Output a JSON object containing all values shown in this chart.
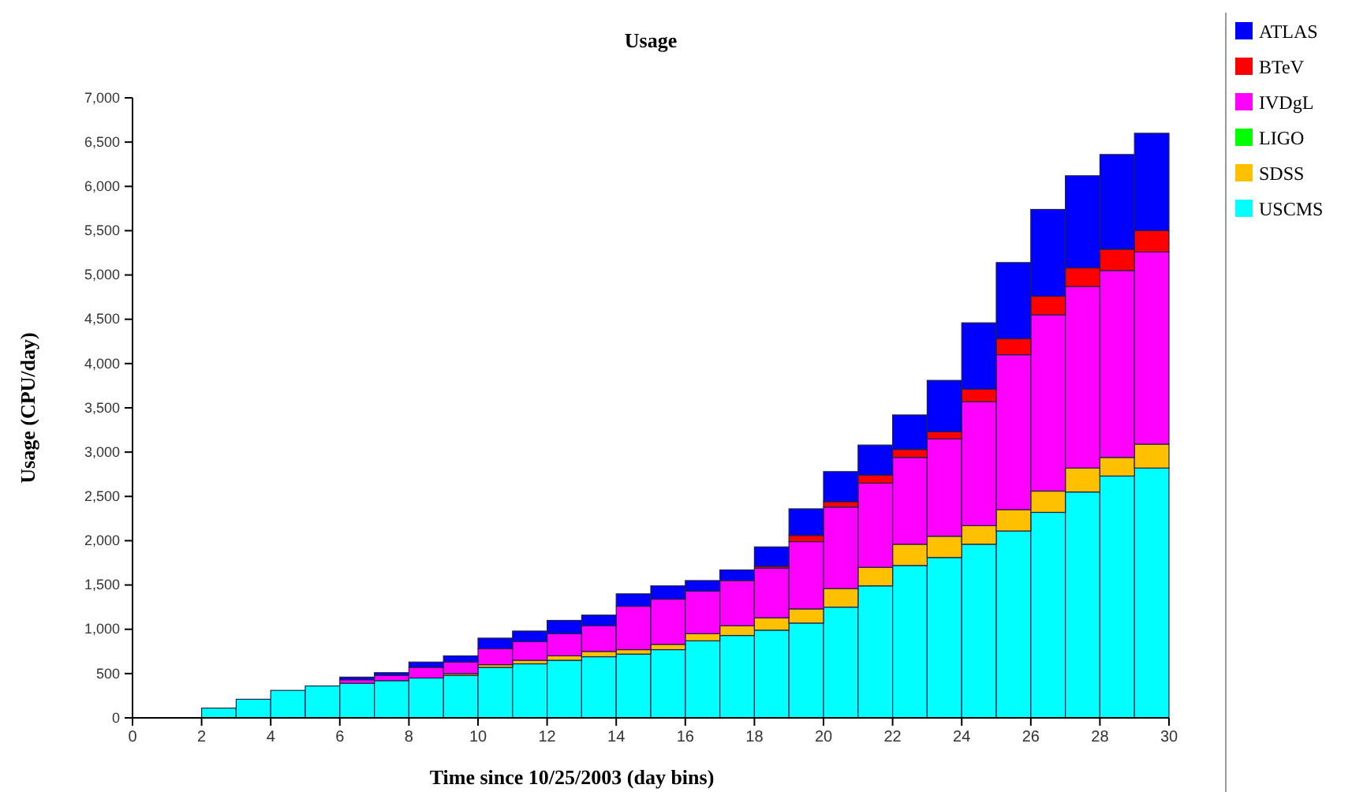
{
  "chart_data": {
    "type": "bar",
    "title": "Usage",
    "xlabel": "Time since 10/25/2003 (day bins)",
    "ylabel": "Usage (CPU/day)",
    "stacked": true,
    "legend": "right",
    "grid": false,
    "x": [
      2.5,
      3.5,
      4.5,
      5.5,
      6.5,
      7.5,
      8.5,
      9.5,
      10.5,
      11.5,
      12.5,
      13.5,
      14.5,
      15.5,
      16.5,
      17.5,
      18.5,
      19.5,
      20.5,
      21.5,
      22.5,
      23.5,
      24.5,
      25.5,
      26.5,
      27.5,
      28.5,
      29.5
    ],
    "xlim": [
      0,
      30
    ],
    "xticks": [
      0,
      2,
      4,
      6,
      8,
      10,
      12,
      14,
      16,
      18,
      20,
      22,
      24,
      26,
      28,
      30
    ],
    "ylim": [
      0,
      7000
    ],
    "yticks": [
      0,
      500,
      {
        "value": 1000,
        "label": "1,000"
      },
      {
        "value": 1500,
        "label": "1,500"
      },
      {
        "value": 2000,
        "label": "2,000"
      },
      {
        "value": 2500,
        "label": "2,500"
      },
      {
        "value": 3000,
        "label": "3,000"
      },
      {
        "value": 3500,
        "label": "3,500"
      },
      {
        "value": 4000,
        "label": "4,000"
      },
      {
        "value": 4500,
        "label": "4,500"
      },
      {
        "value": 5000,
        "label": "5,000"
      },
      {
        "value": 5500,
        "label": "5,500"
      },
      {
        "value": 6000,
        "label": "6,000"
      },
      {
        "value": 6500,
        "label": "6,500"
      },
      {
        "value": 7000,
        "label": "7,000"
      }
    ],
    "series": [
      {
        "name": "USCMS",
        "color": "#00ffff",
        "values": [
          110,
          210,
          310,
          360,
          390,
          420,
          450,
          480,
          570,
          610,
          650,
          690,
          720,
          770,
          870,
          930,
          990,
          1070,
          1250,
          1490,
          1720,
          1810,
          1960,
          2110,
          2320,
          2550,
          2730,
          2820
        ]
      },
      {
        "name": "SDSS",
        "color": "#ffc000",
        "values": [
          0,
          0,
          0,
          0,
          0,
          0,
          0,
          20,
          30,
          40,
          50,
          60,
          50,
          60,
          80,
          110,
          140,
          160,
          210,
          210,
          240,
          240,
          210,
          240,
          240,
          270,
          210,
          270
        ]
      },
      {
        "name": "LIGO",
        "color": "#00ff00",
        "values": [
          0,
          0,
          0,
          0,
          0,
          0,
          0,
          0,
          0,
          0,
          0,
          0,
          0,
          0,
          0,
          0,
          0,
          0,
          0,
          0,
          0,
          0,
          0,
          0,
          0,
          0,
          0,
          0
        ]
      },
      {
        "name": "IVDgL",
        "color": "#ff00ff",
        "values": [
          0,
          0,
          0,
          0,
          40,
          60,
          120,
          130,
          180,
          210,
          250,
          290,
          490,
          510,
          480,
          510,
          560,
          760,
          920,
          950,
          980,
          1100,
          1400,
          1750,
          1990,
          2050,
          2110,
          2170
        ]
      },
      {
        "name": "BTeV",
        "color": "#ff0000",
        "values": [
          0,
          0,
          0,
          0,
          0,
          0,
          0,
          0,
          0,
          0,
          0,
          0,
          0,
          0,
          0,
          0,
          20,
          70,
          60,
          90,
          90,
          80,
          140,
          180,
          210,
          210,
          240,
          240
        ]
      },
      {
        "name": "ATLAS",
        "color": "#0000ff",
        "values": [
          0,
          0,
          0,
          0,
          30,
          30,
          60,
          70,
          120,
          120,
          150,
          120,
          140,
          150,
          120,
          120,
          220,
          300,
          340,
          340,
          390,
          580,
          750,
          860,
          980,
          1040,
          1070,
          1100
        ]
      }
    ]
  }
}
